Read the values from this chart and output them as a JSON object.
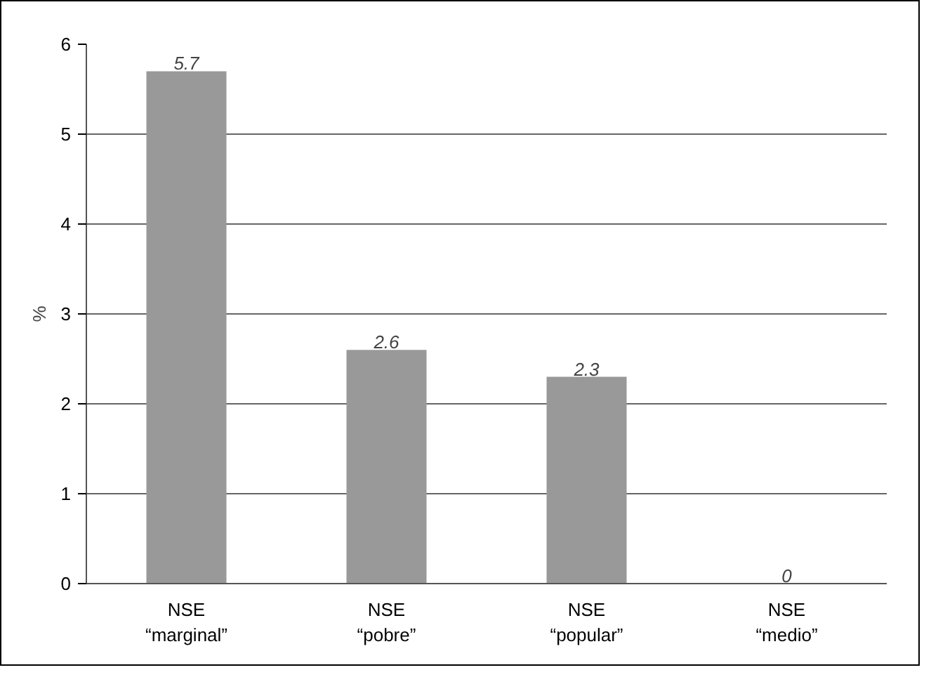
{
  "chart_data": {
    "type": "bar",
    "ylabel": "%",
    "categories": [
      "NSE\n“marginal”",
      "NSE\n“pobre”",
      "NSE\n“popular”",
      "NSE\n“medio”"
    ],
    "values": [
      5.7,
      2.6,
      2.3,
      0
    ],
    "color": "#999999",
    "ylim": [
      0,
      6
    ],
    "yticks": [
      0,
      1,
      2,
      3,
      4,
      5,
      6
    ],
    "grid": "y",
    "data_labels": true
  }
}
